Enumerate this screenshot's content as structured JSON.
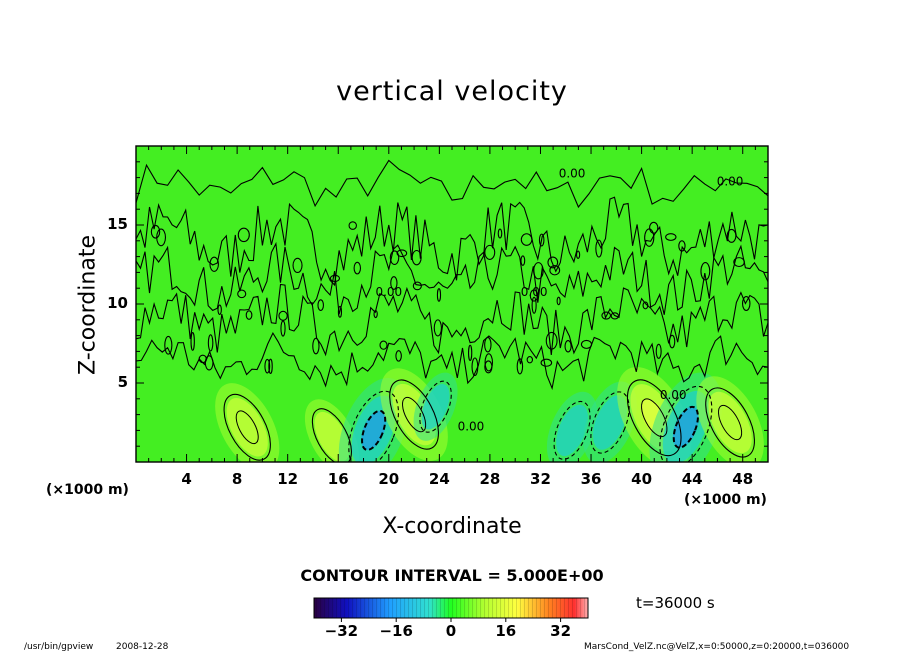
{
  "chart_data": {
    "type": "heatmap",
    "title": "vertical velocity",
    "xlabel": "X-coordinate",
    "ylabel": "Z-coordinate",
    "x_unit": "(×1000 m)",
    "xlim": [
      0,
      50
    ],
    "ylim": [
      0,
      20
    ],
    "x_ticks": [
      4,
      8,
      12,
      16,
      20,
      24,
      28,
      32,
      36,
      40,
      44,
      48
    ],
    "y_ticks": [
      5,
      10,
      15
    ],
    "contour_interval_label": "CONTOUR INTERVAL = 5.000E+00",
    "time_label": "t=36000 s",
    "colorbar": {
      "range": [
        -40,
        40
      ],
      "ticks": [
        -32,
        -16,
        0,
        16,
        32
      ]
    },
    "contour_labels": [
      {
        "x": 34.5,
        "y": 18.0,
        "text": "0.00"
      },
      {
        "x": 47.0,
        "y": 17.5,
        "text": "0.00"
      },
      {
        "x": 20.0,
        "y": 10.5,
        "text": "0.00"
      },
      {
        "x": 31.5,
        "y": 10.5,
        "text": "0.00"
      },
      {
        "x": 42.5,
        "y": 4.0,
        "text": "0.00"
      },
      {
        "x": 26.5,
        "y": 2.0,
        "text": "0.00"
      }
    ],
    "features": [
      {
        "kind": "updraft",
        "x": 8.8,
        "z": 2.2,
        "peak": 9
      },
      {
        "kind": "updraft",
        "x": 15.5,
        "z": 1.6,
        "peak": 6
      },
      {
        "kind": "downdraft",
        "x": 18.8,
        "z": 2.0,
        "peak": -12
      },
      {
        "kind": "updraft",
        "x": 22.0,
        "z": 3.0,
        "peak": 10
      },
      {
        "kind": "downdraft",
        "x": 23.7,
        "z": 3.5,
        "peak": -4
      },
      {
        "kind": "downdraft",
        "x": 34.5,
        "z": 2.0,
        "peak": -6
      },
      {
        "kind": "downdraft",
        "x": 37.5,
        "z": 2.5,
        "peak": -7
      },
      {
        "kind": "updraft",
        "x": 41.0,
        "z": 2.8,
        "peak": 12
      },
      {
        "kind": "downdraft",
        "x": 43.5,
        "z": 2.2,
        "peak": -13
      },
      {
        "kind": "updraft",
        "x": 47.0,
        "z": 2.5,
        "peak": 10
      }
    ]
  },
  "footer": {
    "left": "/usr/bin/gpview",
    "date": "2008-12-28",
    "right": "MarsCond_VelZ.nc@VelZ,x=0:50000,z=0:20000,t=036000"
  }
}
